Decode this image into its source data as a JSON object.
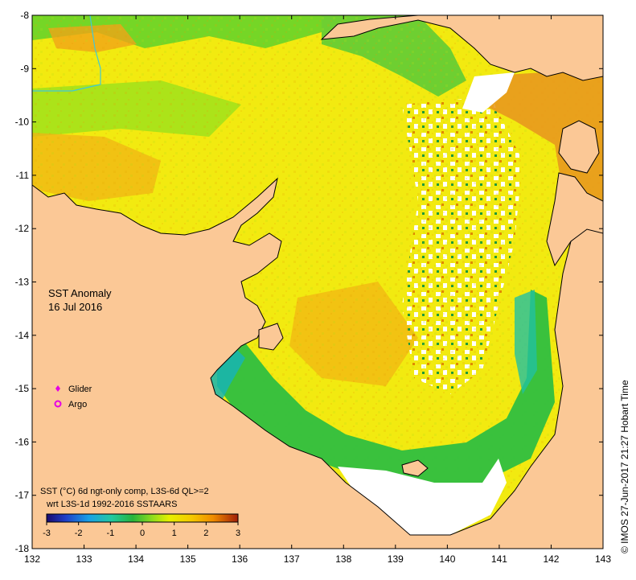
{
  "map": {
    "title_line1": "SST Anomaly",
    "title_line2": "16 Jul 2016",
    "lon_ticks": [
      "132",
      "133",
      "134",
      "135",
      "136",
      "137",
      "138",
      "139",
      "140",
      "141",
      "142",
      "143"
    ],
    "lat_ticks": [
      "-8",
      "-9",
      "-10",
      "-11",
      "-12",
      "-13",
      "-14",
      "-15",
      "-16",
      "-17",
      "-18"
    ],
    "lon_range": [
      132,
      143
    ],
    "lat_range": [
      -18,
      -8
    ]
  },
  "legend": {
    "glider_label": "Glider",
    "argo_label": "Argo",
    "glider_color": "#e400e4",
    "argo_color": "#e400e4"
  },
  "notes": {
    "line1": "SST (°C) 6d ngt-only comp, L3S-6d QL>=2",
    "line2": "wrt L3S-1d 1992-2016 SSTAARS"
  },
  "colorbar": {
    "ticks": [
      "-3",
      "-2",
      "-1",
      "0",
      "1",
      "2",
      "3"
    ],
    "range": [
      -3,
      3
    ]
  },
  "credit": "© IMOS 27-Jun-2017 21:27 Hobart Time",
  "colors": {
    "land": "#fbc896",
    "no_data": "#ffffff",
    "anomaly_warm": "#f0c800",
    "anomaly_neutral": "#c8e600",
    "anomaly_cool": "#2fbf40"
  }
}
